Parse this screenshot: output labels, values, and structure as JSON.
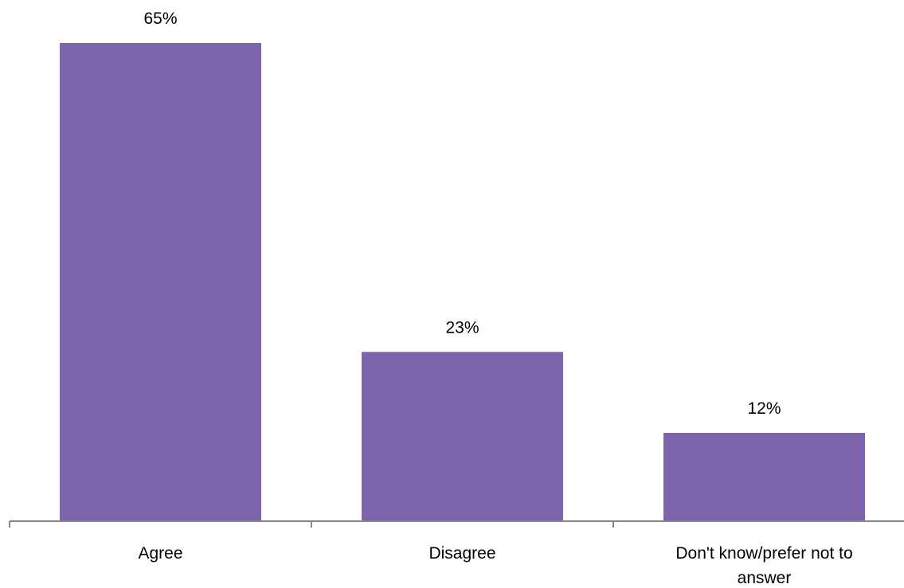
{
  "chart_data": {
    "type": "bar",
    "title": "",
    "xlabel": "",
    "ylabel": "",
    "categories": [
      "Agree",
      "Disagree",
      "Don't know/prefer not to answer"
    ],
    "values": [
      65,
      23,
      12
    ],
    "data_labels": [
      "65%",
      "23%",
      "12%"
    ],
    "ylim": [
      0,
      100
    ],
    "grid": false,
    "legend": "none",
    "colors": {
      "bar": "#7e64ab",
      "axis": "#878787",
      "text": "#000000"
    }
  }
}
